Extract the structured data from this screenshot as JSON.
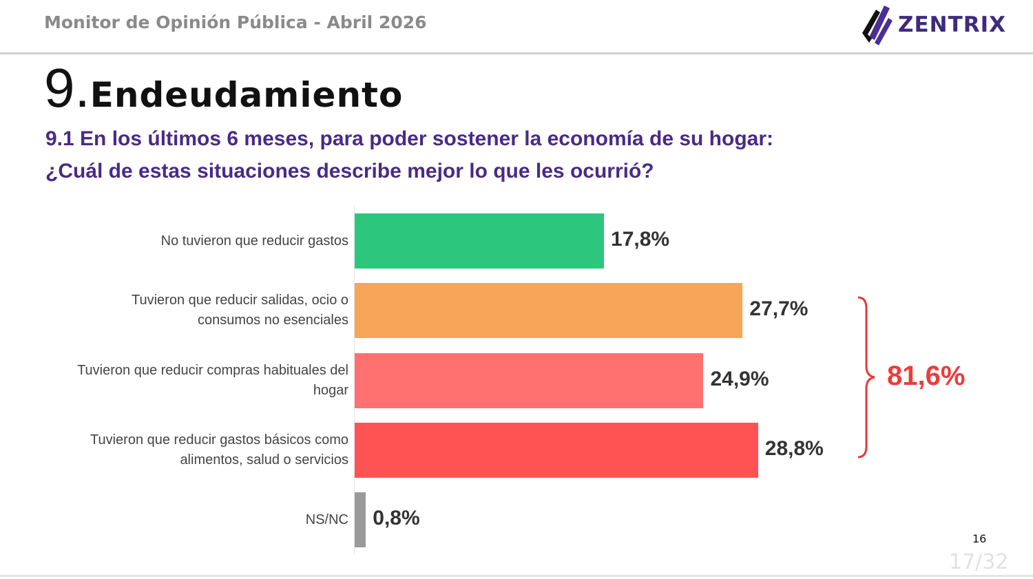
{
  "header": {
    "title": "Monitor de Opinión Pública - Abril 2026",
    "logo_text": "ZENTRIX"
  },
  "slide": {
    "section_number": "9.",
    "section_title": "Endeudamiento",
    "question_line1": "9.1 En los últimos 6 meses, para poder sostener la economía de su hogar:",
    "question_line2": "¿Cuál de estas situaciones describe mejor lo que les ocurrió?",
    "page_number": "16",
    "slide_counter": "17/32"
  },
  "chart_data": {
    "type": "bar",
    "orientation": "horizontal",
    "categories": [
      "No tuvieron que reducir gastos",
      "Tuvieron que reducir salidas, ocio o consumos no esenciales",
      "Tuvieron que reducir compras habituales del hogar",
      "Tuvieron que reducir gastos básicos como alimentos, salud o servicios",
      "NS/NC"
    ],
    "category_lines": [
      [
        "No tuvieron que reducir gastos"
      ],
      [
        "Tuvieron que reducir salidas, ocio o",
        "consumos no esenciales"
      ],
      [
        "Tuvieron que reducir compras habituales del",
        "hogar"
      ],
      [
        "Tuvieron que reducir gastos básicos como",
        "alimentos, salud o servicios"
      ],
      [
        "NS/NC"
      ]
    ],
    "values": [
      17.8,
      27.7,
      24.9,
      28.8,
      0.8
    ],
    "labels": [
      "17,8%",
      "27,7%",
      "24,9%",
      "28,8%",
      "0,8%"
    ],
    "colors": [
      "#2dc67d",
      "#f7a556",
      "#ff7070",
      "#ff5353",
      "#9a9a9a"
    ],
    "annotation": {
      "label": "81,6%",
      "brace_covers": [
        1,
        2,
        3
      ],
      "color": "#ee3b3b"
    },
    "grid": false
  }
}
